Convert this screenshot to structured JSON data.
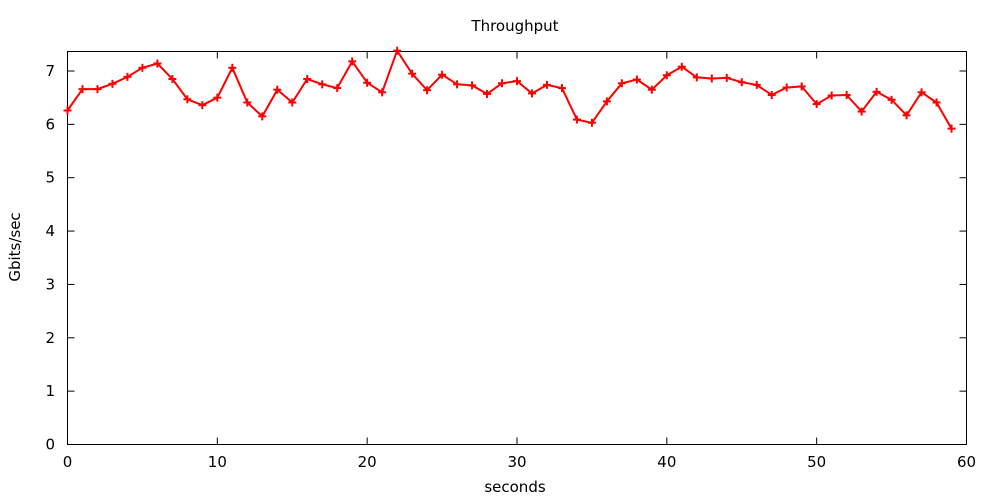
{
  "chart_data": {
    "type": "line",
    "title": "Throughput",
    "xlabel": "seconds",
    "ylabel": "Gbits/sec",
    "xlim": [
      0,
      60
    ],
    "ylim": [
      0,
      7.4
    ],
    "xticks": [
      "0",
      "10",
      "20",
      "30",
      "40",
      "50",
      "60"
    ],
    "yticks": [
      "0",
      "1",
      "2",
      "3",
      "4",
      "5",
      "6",
      "7"
    ],
    "grid": false,
    "legend": "none",
    "color": "#ff0000",
    "series": [
      {
        "x": [
          0,
          1,
          2,
          3,
          4,
          5,
          6,
          7,
          8,
          9,
          10,
          11,
          12,
          13,
          14,
          15,
          16,
          17,
          18,
          19,
          20,
          21,
          22,
          23,
          24,
          25,
          26,
          27,
          28,
          29,
          30,
          31,
          32,
          33,
          34,
          35,
          36,
          37,
          38,
          39,
          40,
          41,
          42,
          43,
          44,
          45,
          46,
          47,
          48,
          49,
          50,
          51,
          52,
          53,
          54,
          55,
          56,
          57,
          58,
          59
        ],
        "y": [
          6.26,
          6.66,
          6.66,
          6.76,
          6.89,
          7.06,
          7.14,
          6.85,
          6.47,
          6.36,
          6.5,
          7.06,
          6.41,
          6.15,
          6.65,
          6.41,
          6.85,
          6.75,
          6.68,
          7.18,
          6.78,
          6.6,
          7.38,
          6.95,
          6.64,
          6.93,
          6.75,
          6.73,
          6.57,
          6.77,
          6.81,
          6.58,
          6.74,
          6.68,
          6.09,
          6.03,
          6.43,
          6.77,
          6.84,
          6.65,
          6.92,
          7.08,
          6.88,
          6.86,
          6.87,
          6.79,
          6.74,
          6.55,
          6.69,
          6.71,
          6.38,
          6.54,
          6.55,
          6.24,
          6.61,
          6.46,
          6.17,
          6.6,
          6.41,
          5.92
        ]
      }
    ]
  }
}
